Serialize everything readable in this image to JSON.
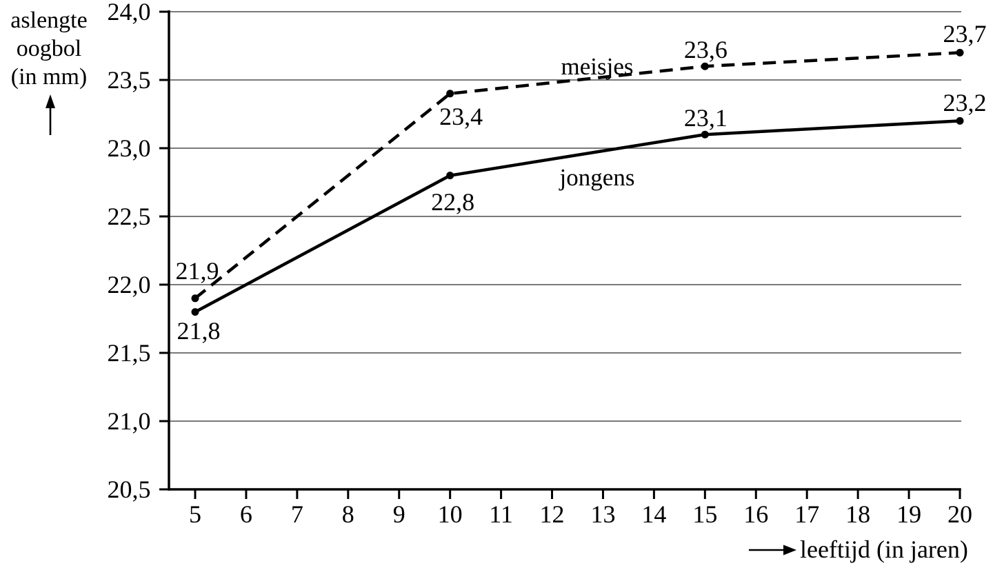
{
  "figure": {
    "background": "#ffffff",
    "ink_color": "#000000",
    "grid_color": "#4d4d4d"
  },
  "y_axis": {
    "title_lines": [
      "aslengte",
      "oogbol",
      "(in mm)"
    ],
    "arrow_icon": "up-arrow",
    "tick_labels": [
      "24,0",
      "23,5",
      "23,0",
      "22,5",
      "22,0",
      "21,5",
      "21,0",
      "20,5"
    ],
    "min": 20.5,
    "max": 24.0,
    "step": 0.5
  },
  "x_axis": {
    "title": "leeftijd (in jaren)",
    "arrow_icon": "right-arrow",
    "tick_labels": [
      "5",
      "6",
      "7",
      "8",
      "9",
      "10",
      "11",
      "12",
      "13",
      "14",
      "15",
      "16",
      "17",
      "18",
      "19",
      "20"
    ],
    "min": 5,
    "max": 20,
    "step": 1
  },
  "chart_data": {
    "type": "line",
    "title": "",
    "xlabel": "leeftijd (in jaren)",
    "ylabel": "aslengte oogbol (in mm)",
    "x": [
      5,
      10,
      15,
      20
    ],
    "xlim": [
      5,
      20
    ],
    "ylim": [
      20.5,
      24.0
    ],
    "grid": true,
    "legend_position": "inline-labels",
    "series": [
      {
        "name": "meisjes",
        "line_style": "dashed",
        "color": "#000000",
        "values": [
          21.9,
          23.4,
          23.6,
          23.7
        ],
        "point_labels": [
          "21,9",
          "23,4",
          "23,6",
          "23,7"
        ],
        "label_offsets": [
          [
            3,
            -40
          ],
          [
            16,
            33
          ],
          [
            1,
            -24
          ],
          [
            7,
            -27
          ]
        ],
        "name_label_center": [
          866,
          97
        ]
      },
      {
        "name": "jongens",
        "line_style": "solid",
        "color": "#000000",
        "values": [
          21.8,
          22.8,
          23.1,
          23.2
        ],
        "point_labels": [
          "21,8",
          "22,8",
          "23,1",
          "23,2"
        ],
        "label_offsets": [
          [
            5,
            27
          ],
          [
            4,
            38
          ],
          [
            1,
            -24
          ],
          [
            7,
            -26
          ]
        ],
        "name_label_center": [
          866,
          258
        ]
      }
    ]
  }
}
